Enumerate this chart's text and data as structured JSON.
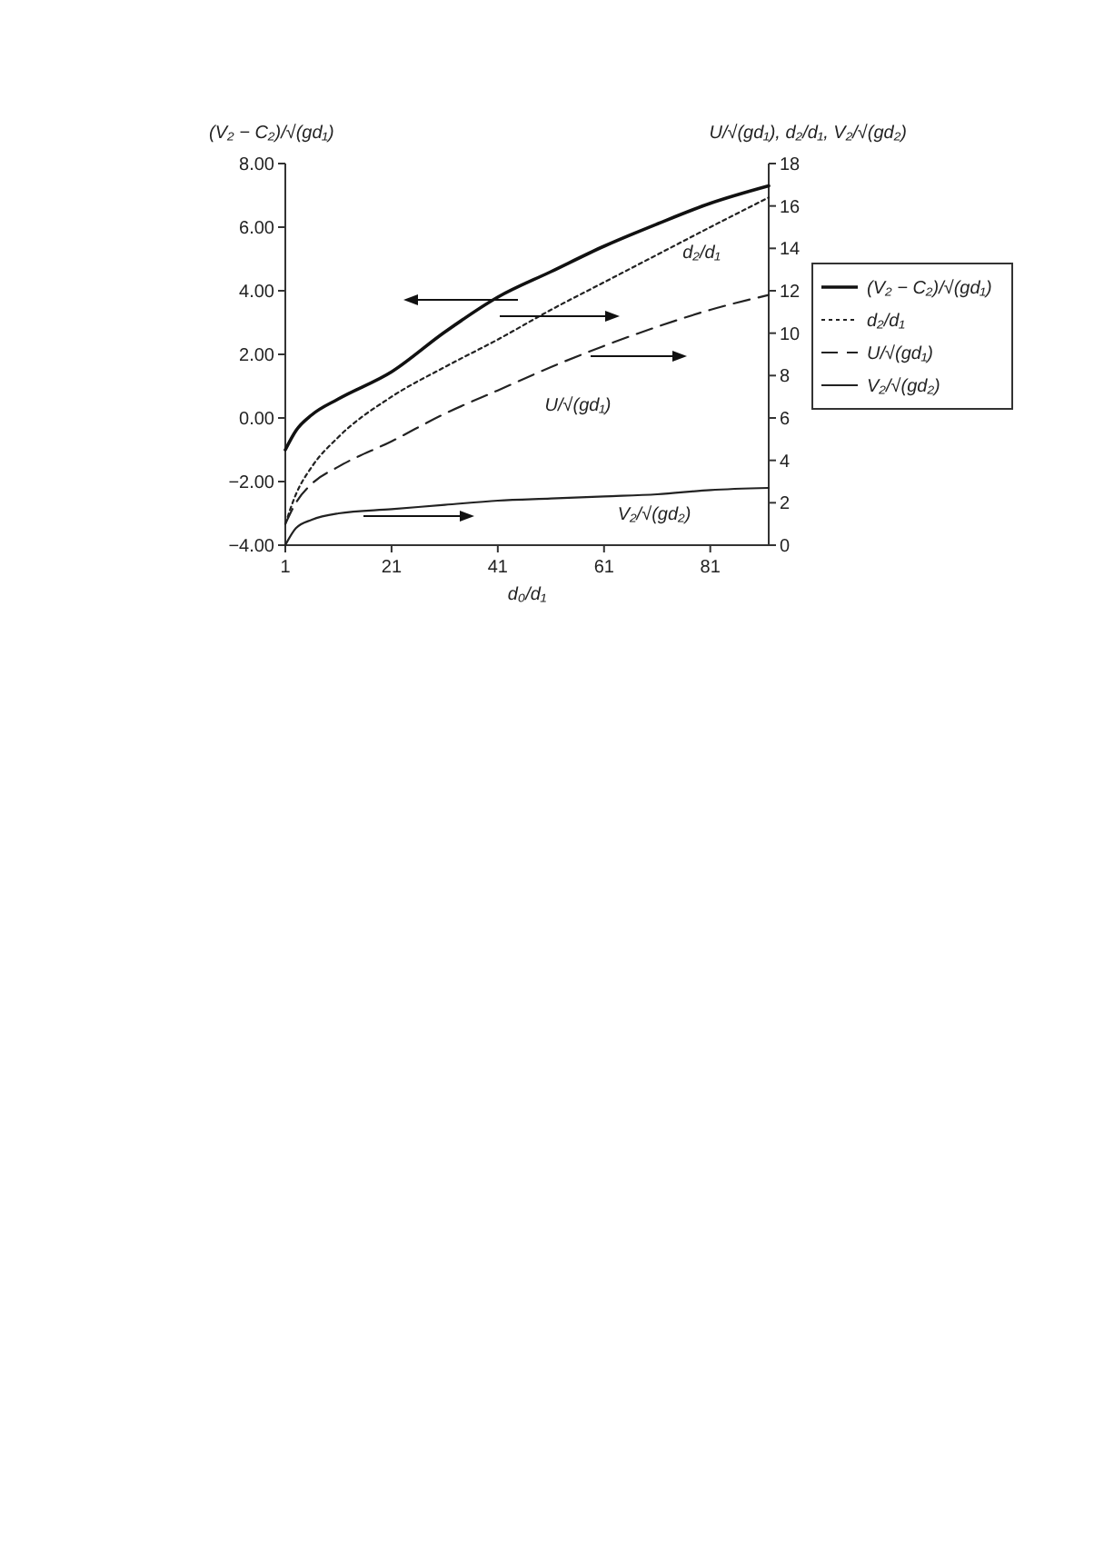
{
  "chart_data": {
    "type": "line",
    "xlabel": "d₀/d₁",
    "ylabel": "(V₂ − C₂)/√(gd₁)",
    "y2label": "U/√(gd₁), d₂/d₁, V₂/√(gd₂)",
    "x": [
      1,
      3,
      6,
      11,
      21,
      31,
      41,
      51,
      61,
      71,
      81,
      92
    ],
    "xlim": [
      1,
      92
    ],
    "xticks": [
      1,
      21,
      41,
      61,
      81
    ],
    "ylim": [
      -4,
      8
    ],
    "yticks": [
      {
        "value": -4,
        "label": "−4.00"
      },
      {
        "value": -2,
        "label": "−2.00"
      },
      {
        "value": 0,
        "label": "0.00"
      },
      {
        "value": 2,
        "label": "2.00"
      },
      {
        "value": 4,
        "label": "4.00"
      },
      {
        "value": 6,
        "label": "6.00"
      },
      {
        "value": 8,
        "label": "8.00"
      }
    ],
    "y2lim": [
      0,
      18
    ],
    "y2ticks": [
      0,
      2,
      4,
      6,
      8,
      10,
      12,
      14,
      16,
      18
    ],
    "legend": "right",
    "grid": false,
    "series": [
      {
        "name": "(V₂ − C₂)/√(gd₁)",
        "color": "#111111",
        "line_style": "solid",
        "values": [
          -1.0,
          -0.4,
          0.1,
          0.6,
          1.45,
          2.7,
          3.8,
          4.6,
          5.4,
          6.1,
          6.75,
          7.3
        ]
      },
      {
        "name": "d₂/d₁",
        "color": "#222222",
        "line_style": "dotted",
        "axis": "y2",
        "values": [
          1.0,
          2.4,
          3.7,
          5.1,
          7.0,
          8.4,
          9.7,
          11.1,
          12.4,
          13.7,
          15.0,
          16.4
        ]
      },
      {
        "name": "U/√(gd₁)",
        "color": "#222222",
        "line_style": "dashed",
        "axis": "y2",
        "values": [
          1.0,
          2.0,
          2.9,
          3.7,
          4.9,
          6.2,
          7.3,
          8.4,
          9.4,
          10.3,
          11.1,
          11.8
        ]
      },
      {
        "name": "V₂/√(gd₂)",
        "color": "#222222",
        "line_style": "solid",
        "axis": "y2",
        "values": [
          0.0,
          0.8,
          1.2,
          1.5,
          1.7,
          1.9,
          2.1,
          2.2,
          2.3,
          2.4,
          2.6,
          2.7
        ]
      }
    ],
    "annotations": [
      "d₂/d₁",
      "U/√(gd₁)",
      "V₂/√(gd₂)"
    ]
  }
}
